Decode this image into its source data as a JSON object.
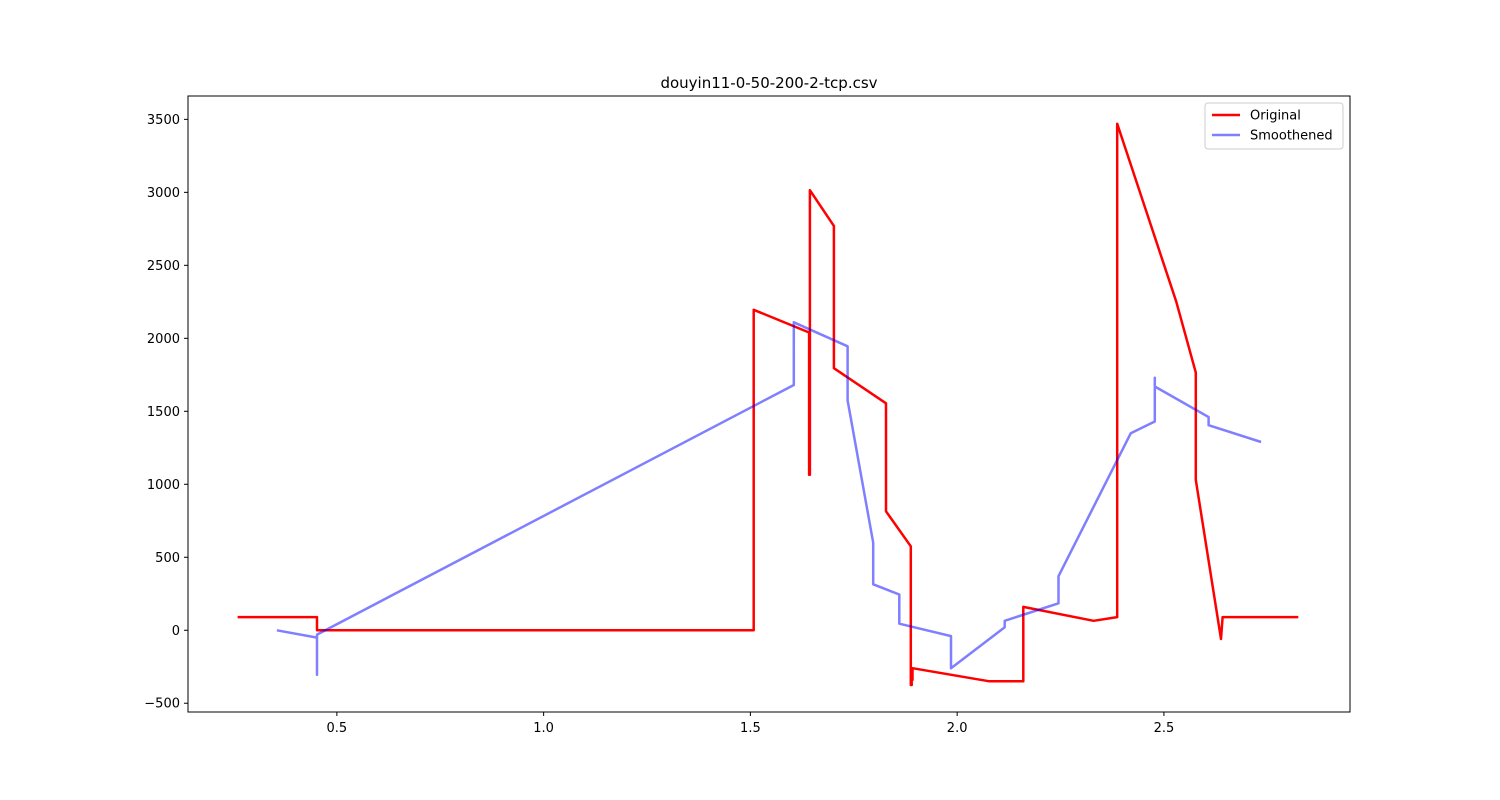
{
  "chart_data": {
    "type": "line",
    "title": "douyin11-0-50-200-2-tcp.csv",
    "xlabel": "",
    "ylabel": "",
    "xlim": [
      0.14,
      2.95
    ],
    "ylim": [
      -560,
      3660
    ],
    "xticks": [
      0.5,
      1.0,
      1.5,
      2.0,
      2.5
    ],
    "xtick_labels": [
      "0.5",
      "1.0",
      "1.5",
      "2.0",
      "2.5"
    ],
    "yticks": [
      -500,
      0,
      500,
      1000,
      1500,
      2000,
      2500,
      3000,
      3500
    ],
    "ytick_labels": [
      "−500",
      "0",
      "500",
      "1000",
      "1500",
      "2000",
      "2500",
      "3000",
      "3500"
    ],
    "grid": false,
    "legend_position": "top-right",
    "series": [
      {
        "name": "Original",
        "color": "#ff0000",
        "opacity": 1.0,
        "x": [
          0.26,
          0.452,
          0.452,
          1.508,
          1.508,
          1.642,
          1.642,
          1.644,
          1.644,
          1.702,
          1.702,
          1.828,
          1.828,
          1.888,
          1.888,
          1.89,
          1.89,
          1.892,
          1.892,
          2.078,
          2.16,
          2.16,
          2.33,
          2.387,
          2.387,
          2.53,
          2.577,
          2.577,
          2.638,
          2.638,
          2.642,
          2.642,
          2.825
        ],
        "y": [
          90,
          90,
          0,
          0,
          2195,
          2040,
          1065,
          1065,
          3015,
          2770,
          1795,
          1555,
          815,
          575,
          -375,
          -375,
          -340,
          -340,
          -260,
          -350,
          -350,
          160,
          65,
          90,
          3470,
          2250,
          1765,
          1030,
          -60,
          -60,
          90,
          90,
          90
        ]
      },
      {
        "name": "Smoothened",
        "color": "#0000ff",
        "opacity": 0.5,
        "x": [
          0.355,
          0.452,
          0.452,
          0.452,
          1.605,
          1.605,
          1.735,
          1.735,
          1.797,
          1.797,
          1.86,
          1.86,
          1.985,
          1.985,
          2.115,
          2.115,
          2.245,
          2.245,
          2.42,
          2.478,
          2.478,
          2.478,
          2.608,
          2.608,
          2.735
        ],
        "y": [
          0,
          -50,
          -305,
          -30,
          1680,
          2110,
          1945,
          1575,
          600,
          315,
          245,
          45,
          -40,
          -260,
          20,
          65,
          185,
          370,
          1350,
          1430,
          1730,
          1670,
          1460,
          1405,
          1290
        ]
      }
    ]
  }
}
